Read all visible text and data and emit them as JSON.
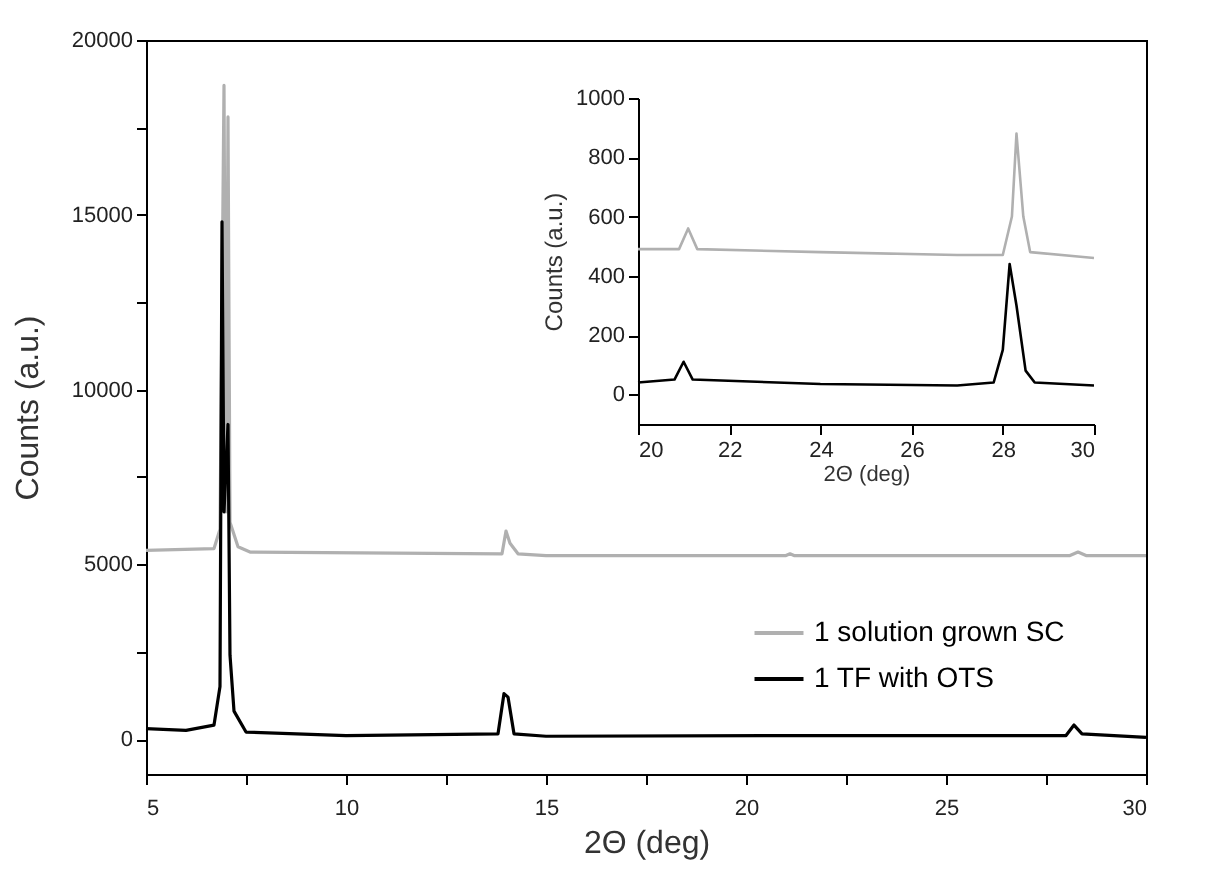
{
  "chart_data": [
    {
      "type": "line",
      "xlabel": "2Θ (deg)",
      "ylabel": "Counts (a.u.)",
      "xlim": [
        5,
        30
      ],
      "ylim": [
        -1000,
        20000
      ],
      "xticks": [
        5,
        {
          "value": 7.5,
          "label": null
        },
        10,
        {
          "value": 12.5,
          "label": null
        },
        15,
        {
          "value": 17.5,
          "label": null
        },
        20,
        {
          "value": 22.5,
          "label": null
        },
        25,
        {
          "value": 27.5,
          "label": null
        },
        30
      ],
      "yticks": [
        0,
        {
          "value": 2500,
          "label": null
        },
        5000,
        {
          "value": 7500,
          "label": null
        },
        10000,
        {
          "value": 12500,
          "label": null
        },
        15000,
        {
          "value": 17500,
          "label": null
        },
        20000
      ],
      "grid": false,
      "legend": "bottom right",
      "marker": "none",
      "line_style": "solid",
      "series": [
        {
          "name": "1 solution grown SC",
          "color": "#b0b0b0",
          "x": [
            5,
            6.7,
            6.85,
            6.95,
            7.0,
            7.05,
            7.1,
            7.3,
            7.6,
            13.9,
            14.0,
            14.1,
            14.3,
            15,
            21.0,
            21.1,
            21.2,
            28.1,
            28.3,
            28.5,
            30
          ],
          "values": [
            5400,
            5450,
            6000,
            18700,
            6500,
            17800,
            6200,
            5500,
            5350,
            5300,
            5950,
            5600,
            5300,
            5250,
            5250,
            5300,
            5250,
            5250,
            5350,
            5250,
            5250
          ]
        },
        {
          "name": "1 TF with OTS",
          "color": "#000000",
          "x": [
            5,
            6,
            6.7,
            6.85,
            6.9,
            6.95,
            7.05,
            7.1,
            7.2,
            7.5,
            10,
            13.8,
            13.95,
            14.05,
            14.2,
            15,
            21,
            28.0,
            28.2,
            28.4,
            30
          ],
          "values": [
            300,
            250,
            400,
            1500,
            14800,
            6500,
            9000,
            2400,
            800,
            200,
            100,
            150,
            1300,
            1200,
            150,
            80,
            100,
            100,
            400,
            150,
            50
          ]
        }
      ]
    },
    {
      "type": "line",
      "xlabel": "2Θ (deg)",
      "ylabel": "Counts (a.u.)",
      "xlim": [
        20,
        30
      ],
      "ylim": [
        -100,
        1000
      ],
      "xticks": [
        20,
        22,
        24,
        26,
        28,
        30
      ],
      "yticks": [
        0,
        200,
        400,
        600,
        800,
        1000
      ],
      "grid": false,
      "legend": false,
      "marker": "none",
      "line_style": "solid",
      "series": [
        {
          "color": "#b0b0b0",
          "x": [
            20,
            20.9,
            21.1,
            21.3,
            24,
            27,
            28.0,
            28.2,
            28.3,
            28.45,
            28.6,
            30
          ],
          "values": [
            490,
            490,
            560,
            490,
            480,
            470,
            470,
            600,
            880,
            600,
            480,
            460
          ]
        },
        {
          "color": "#000000",
          "x": [
            20,
            20.8,
            21.0,
            21.2,
            24,
            27,
            27.8,
            28.0,
            28.15,
            28.3,
            28.5,
            28.7,
            30
          ],
          "values": [
            40,
            50,
            110,
            50,
            35,
            30,
            40,
            150,
            440,
            300,
            80,
            40,
            30
          ]
        }
      ]
    }
  ]
}
